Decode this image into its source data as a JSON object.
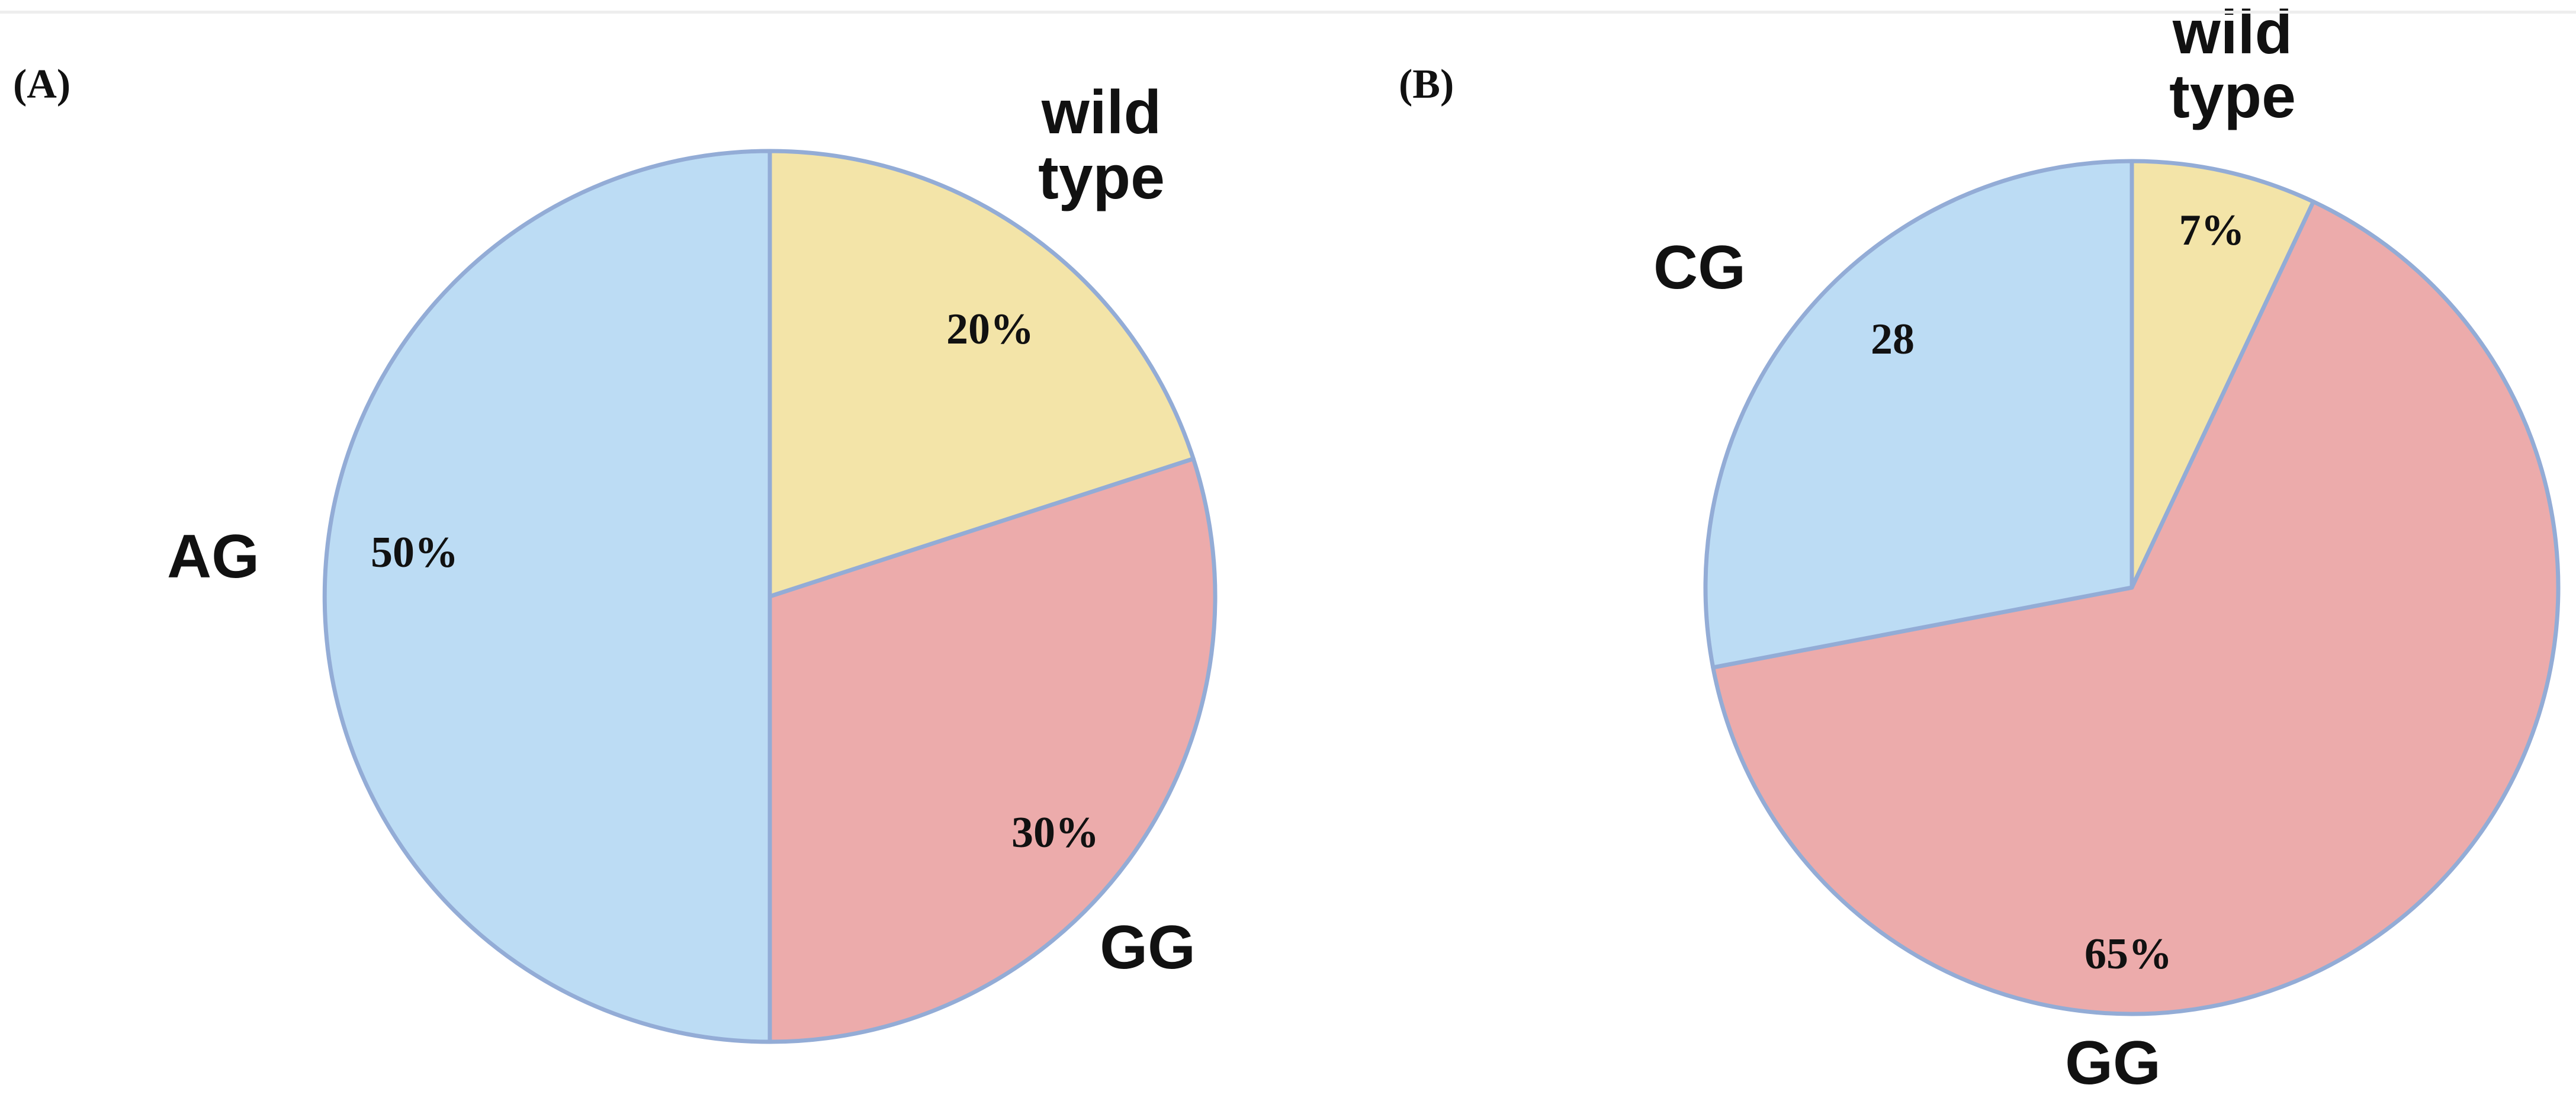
{
  "chart_data": [
    {
      "type": "pie",
      "panel_label": "(A)",
      "slices": [
        {
          "category": "wild type",
          "value": 20,
          "value_label": "20%",
          "color": "#f3e4a8"
        },
        {
          "category": "GG",
          "value": 30,
          "value_label": "30%",
          "color": "#ecabab"
        },
        {
          "category": "AG",
          "value": 50,
          "value_label": "50%",
          "color": "#bcdcf4"
        }
      ],
      "start": "12 o'clock",
      "direction": "clockwise",
      "edge_color": "#93acd6"
    },
    {
      "type": "pie",
      "panel_label": "(B)",
      "slices": [
        {
          "category": "wild type",
          "value": 7,
          "value_label": "7%",
          "color": "#f3e4a8"
        },
        {
          "category": "GG",
          "value": 65,
          "value_label": "65%",
          "color": "#ecabab"
        },
        {
          "category": "CG",
          "value": 28,
          "value_label": "28",
          "color": "#bcdcf4"
        }
      ],
      "start": "12 o'clock",
      "direction": "clockwise",
      "edge_color": "#93acd6"
    }
  ]
}
